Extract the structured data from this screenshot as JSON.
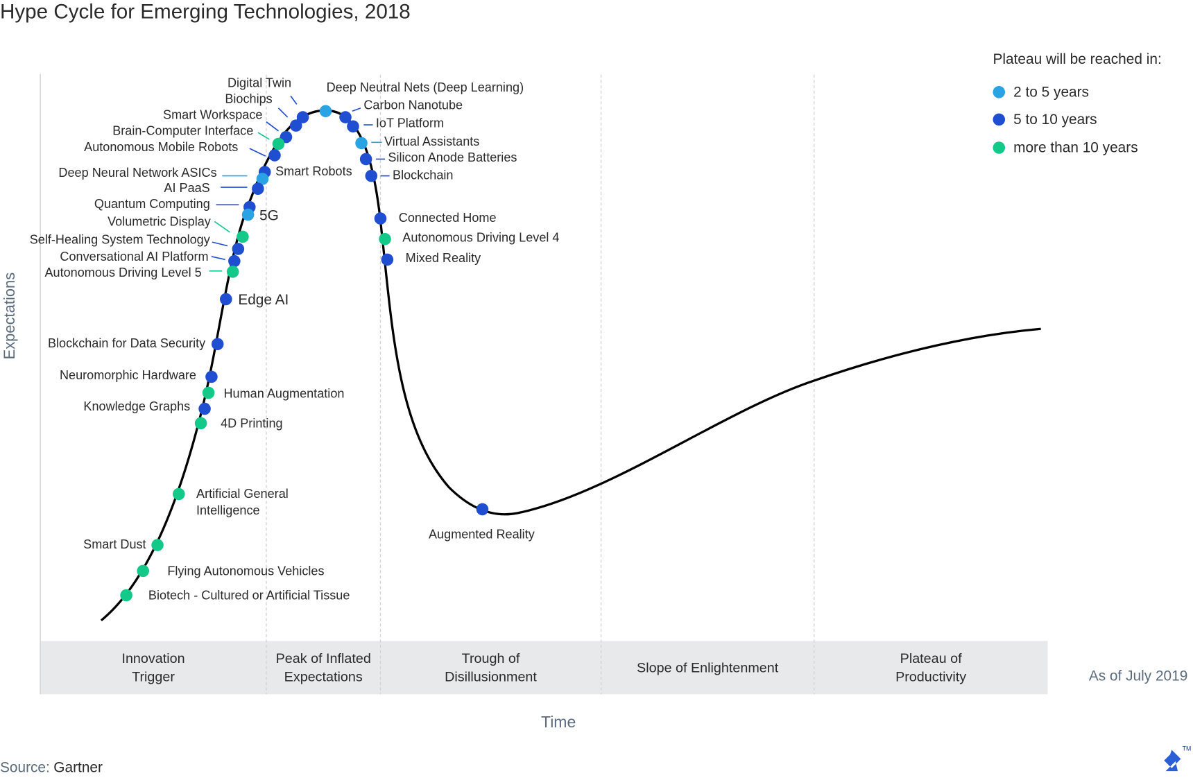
{
  "title": "Hype Cycle for Emerging Technologies, 2018",
  "legend": {
    "title": "Plateau will be reached in:",
    "items": [
      {
        "label": "2 to 5 years",
        "color": "#29a3e3"
      },
      {
        "label": "5 to 10 years",
        "color": "#1f4ed0"
      },
      {
        "label": "more than 10 years",
        "color": "#13c98a"
      }
    ]
  },
  "y_axis_label": "Expectations",
  "x_axis_label": "Time",
  "phases": [
    [
      "Innovation",
      "Trigger"
    ],
    [
      "Peak of Inflated",
      "Expectations"
    ],
    [
      "Trough of",
      "Disillusionment"
    ],
    [
      "Slope of Enlightenment"
    ],
    [
      "Plateau of",
      "Productivity"
    ]
  ],
  "as_of": "As of July 2019",
  "source_label": "Source:",
  "source": "Gartner",
  "logo_trademark": "TM",
  "technologies": [
    {
      "name": "Digital Twin",
      "plateau": "5 to 10 years"
    },
    {
      "name": "Biochips",
      "plateau": "5 to 10 years"
    },
    {
      "name": "Smart Workspace",
      "plateau": "5 to 10 years"
    },
    {
      "name": "Brain-Computer Interface",
      "plateau": "more than 10 years"
    },
    {
      "name": "Autonomous Mobile Robots",
      "plateau": "5 to 10 years"
    },
    {
      "name": "Smart Robots",
      "plateau": "5 to 10 years"
    },
    {
      "name": "Deep Neural Network ASICs",
      "plateau": "2 to 5 years"
    },
    {
      "name": "AI PaaS",
      "plateau": "5 to 10 years"
    },
    {
      "name": "Quantum Computing",
      "plateau": "5 to 10 years"
    },
    {
      "name": "5G",
      "plateau": "2 to 5 years"
    },
    {
      "name": "Volumetric Display",
      "plateau": "more than 10 years"
    },
    {
      "name": "Self-Healing System Technology",
      "plateau": "5 to 10 years"
    },
    {
      "name": "Conversational AI Platform",
      "plateau": "5 to 10 years"
    },
    {
      "name": "Autonomous Driving Level 5",
      "plateau": "more than 10 years"
    },
    {
      "name": "Edge AI",
      "plateau": "5 to 10 years"
    },
    {
      "name": "Blockchain for Data Security",
      "plateau": "5 to 10 years"
    },
    {
      "name": "Neuromorphic Hardware",
      "plateau": "5 to 10 years"
    },
    {
      "name": "Human Augmentation",
      "plateau": "more than 10 years"
    },
    {
      "name": "Knowledge Graphs",
      "plateau": "5 to 10 years"
    },
    {
      "name": "4D Printing",
      "plateau": "more than 10 years"
    },
    {
      "name": "Artificial General Intelligence",
      "plateau": "more than 10 years"
    },
    {
      "name": "Smart Dust",
      "plateau": "more than 10 years"
    },
    {
      "name": "Flying Autonomous Vehicles",
      "plateau": "more than 10 years"
    },
    {
      "name": "Biotech - Cultured or Artificial Tissue",
      "plateau": "more than 10 years"
    },
    {
      "name": "Deep Neutral Nets (Deep Learning)",
      "plateau": "2 to 5 years"
    },
    {
      "name": "Carbon Nanotube",
      "plateau": "5 to 10 years"
    },
    {
      "name": "IoT Platform",
      "plateau": "5 to 10 years"
    },
    {
      "name": "Virtual Assistants",
      "plateau": "2 to 5 years"
    },
    {
      "name": "Silicon Anode Batteries",
      "plateau": "5 to 10 years"
    },
    {
      "name": "Blockchain",
      "plateau": "5 to 10 years"
    },
    {
      "name": "Connected Home",
      "plateau": "5 to 10 years"
    },
    {
      "name": "Autonomous Driving Level 4",
      "plateau": "more than 10 years"
    },
    {
      "name": "Mixed Reality",
      "plateau": "5 to 10 years"
    },
    {
      "name": "Augmented Reality",
      "plateau": "5 to 10 years"
    }
  ]
}
